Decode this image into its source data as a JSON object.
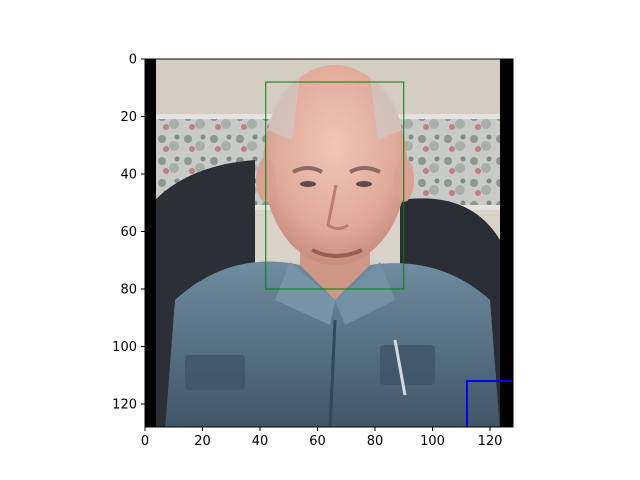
{
  "chart_data": {
    "type": "image",
    "title": "",
    "xlabel": "",
    "ylabel": "",
    "xlim": [
      0,
      128
    ],
    "ylim": [
      128,
      0
    ],
    "xticks": [
      0,
      20,
      40,
      60,
      80,
      100,
      120
    ],
    "yticks": [
      0,
      20,
      40,
      60,
      80,
      100,
      120
    ],
    "xtick_labels": [
      "0",
      "20",
      "40",
      "60",
      "80",
      "100",
      "120"
    ],
    "ytick_labels": [
      "0",
      "20",
      "40",
      "60",
      "80",
      "100",
      "120"
    ],
    "image_content": "portrait photo of an elderly man wearing a blue-gray denim shirt, patterned wallpaper background",
    "letterbox_columns": {
      "left": [
        0,
        4
      ],
      "right": [
        124,
        128
      ]
    },
    "overlays": [
      {
        "name": "face-bounding-box",
        "shape": "polygon",
        "color": "#008000",
        "linewidth": 1,
        "points": [
          [
            42,
            8
          ],
          [
            90,
            8
          ],
          [
            90,
            80
          ],
          [
            42,
            80
          ]
        ]
      },
      {
        "name": "corner-marker",
        "shape": "polyline",
        "color": "#0000ff",
        "linewidth": 2,
        "points": [
          [
            112,
            128
          ],
          [
            112,
            112
          ],
          [
            128,
            112
          ]
        ]
      }
    ]
  }
}
